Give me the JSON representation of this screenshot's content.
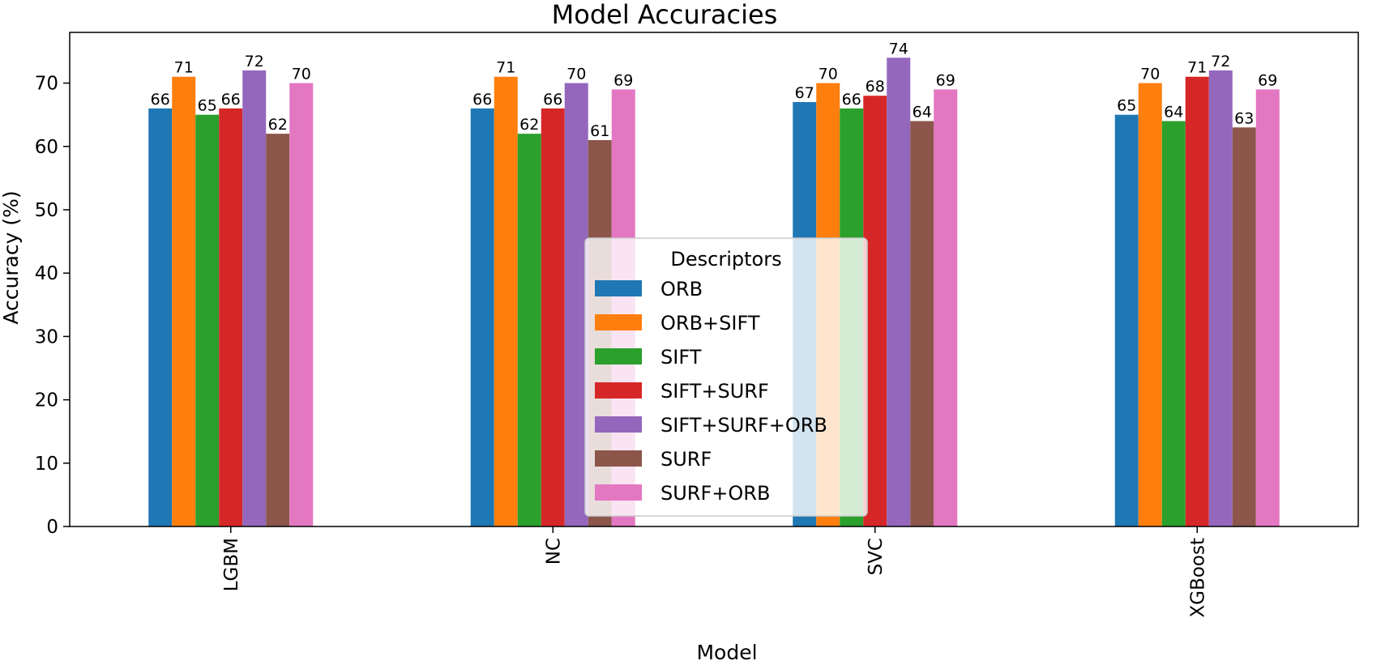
{
  "chart_data": {
    "type": "bar",
    "title": "Model Accuracies",
    "xlabel": "Model",
    "ylabel": "Accuracy (%)",
    "ylim": [
      0,
      78
    ],
    "yticks": [
      0,
      10,
      20,
      30,
      40,
      50,
      60,
      70
    ],
    "categories": [
      "LGBM",
      "NC",
      "SVC",
      "XGBoost"
    ],
    "legend_title": "Descriptors",
    "legend_position": "center",
    "grid": false,
    "series": [
      {
        "name": "ORB",
        "color": "#1f77b4",
        "values": [
          66,
          66,
          67,
          65
        ]
      },
      {
        "name": "ORB+SIFT",
        "color": "#ff7f0e",
        "values": [
          71,
          71,
          70,
          70
        ]
      },
      {
        "name": "SIFT",
        "color": "#2ca02c",
        "values": [
          65,
          62,
          66,
          64
        ]
      },
      {
        "name": "SIFT+SURF",
        "color": "#d62728",
        "values": [
          66,
          66,
          68,
          71
        ]
      },
      {
        "name": "SIFT+SURF+ORB",
        "color": "#9467bd",
        "values": [
          72,
          70,
          74,
          72
        ]
      },
      {
        "name": "SURF",
        "color": "#8c564b",
        "values": [
          62,
          61,
          64,
          63
        ]
      },
      {
        "name": "SURF+ORB",
        "color": "#e377c2",
        "values": [
          70,
          69,
          69,
          69
        ]
      }
    ]
  }
}
